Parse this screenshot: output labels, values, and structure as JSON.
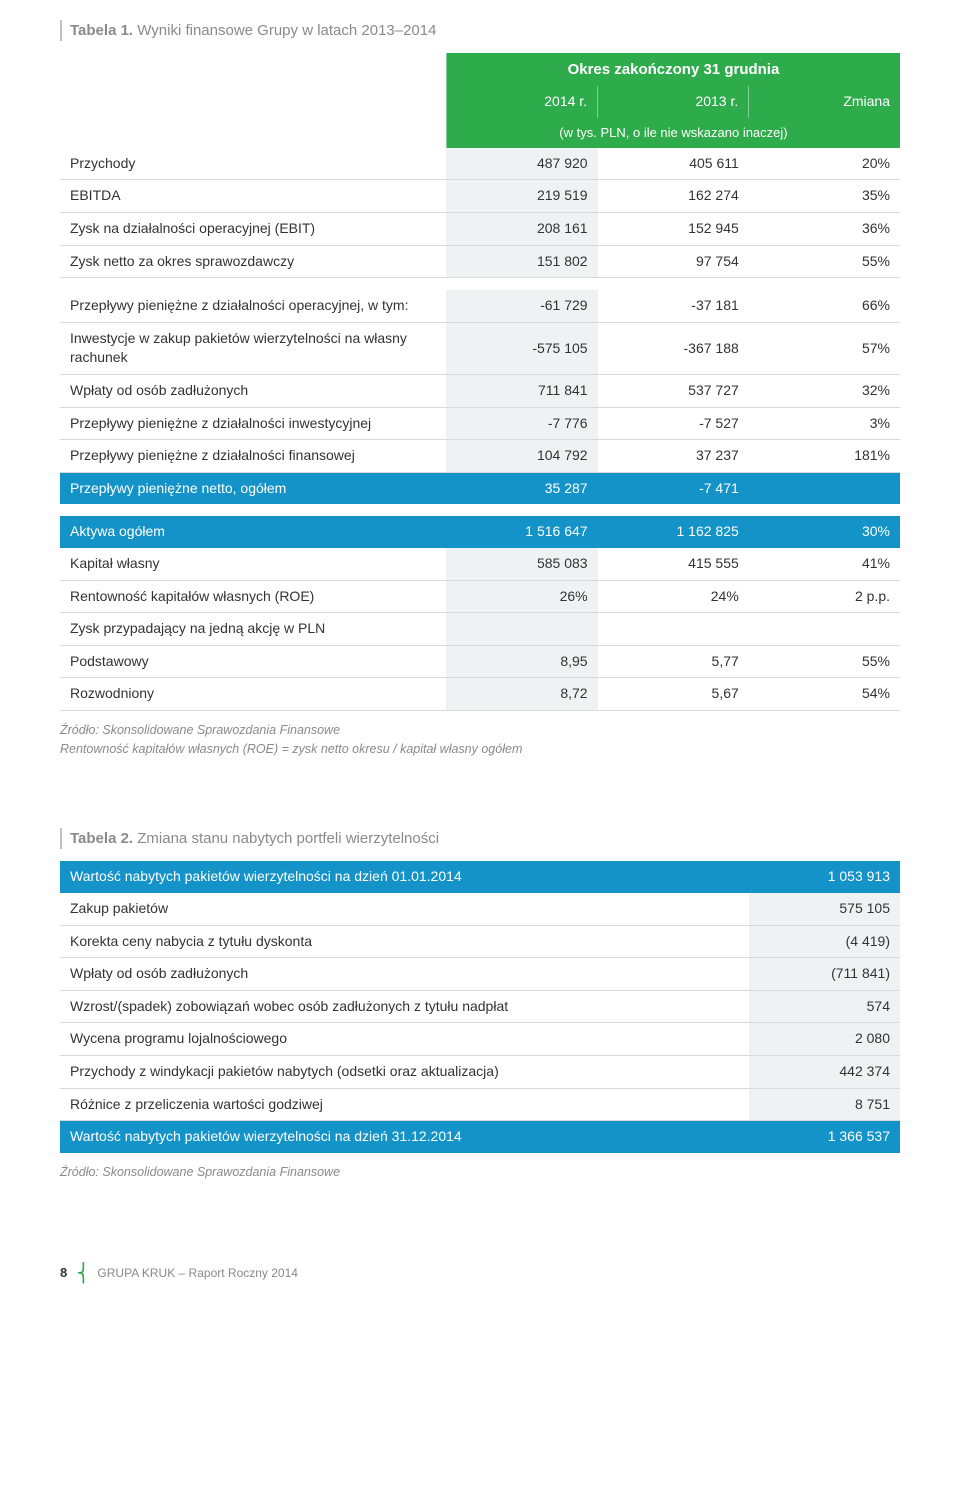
{
  "table1": {
    "title_prefix": "Tabela 1.",
    "title_rest": " Wyniki finansowe Grupy w latach 2013–2014",
    "header_super": "Okres zakończony 31 grudnia",
    "header_cols": [
      "2014 r.",
      "2013 r.",
      "Zmiana"
    ],
    "header_note": "(w tys. PLN, o ile nie wskazano inaczej)",
    "block1": [
      {
        "label": "Przychody",
        "v1": "487 920",
        "v2": "405 611",
        "v3": "20%"
      },
      {
        "label": "EBITDA",
        "v1": "219 519",
        "v2": "162 274",
        "v3": "35%"
      },
      {
        "label": "Zysk na działalności operacyjnej (EBIT)",
        "v1": "208 161",
        "v2": "152 945",
        "v3": "36%"
      },
      {
        "label": "Zysk netto za okres sprawozdawczy",
        "v1": "151 802",
        "v2": "97 754",
        "v3": "55%"
      }
    ],
    "block2": [
      {
        "label": "Przepływy pieniężne z działalności operacyjnej, w tym:",
        "v1": "-61 729",
        "v2": "-37 181",
        "v3": "66%"
      },
      {
        "label": "Inwestycje w zakup pakietów wierzytelności na własny rachunek",
        "v1": "-575 105",
        "v2": "-367 188",
        "v3": "57%"
      },
      {
        "label": "Wpłaty od osób zadłużonych",
        "v1": "711 841",
        "v2": "537 727",
        "v3": "32%"
      },
      {
        "label": "Przepływy pieniężne z działalności inwestycyjnej",
        "v1": "-7 776",
        "v2": "-7 527",
        "v3": "3%"
      },
      {
        "label": "Przepływy pieniężne z działalności finansowej",
        "v1": "104 792",
        "v2": "37 237",
        "v3": "181%"
      }
    ],
    "block2_highlight": {
      "label": "Przepływy pieniężne netto, ogółem",
      "v1": "35 287",
      "v2": "-7 471",
      "v3": ""
    },
    "block3_highlight": {
      "label": "Aktywa ogółem",
      "v1": "1 516 647",
      "v2": "1 162 825",
      "v3": "30%"
    },
    "block3": [
      {
        "label": "Kapitał własny",
        "v1": "585 083",
        "v2": "415 555",
        "v3": "41%"
      },
      {
        "label": "Rentowność kapitałów własnych (ROE)",
        "v1": "26%",
        "v2": "24%",
        "v3": "2 p.p."
      },
      {
        "label": "Zysk przypadający na jedną akcję w PLN",
        "v1": "",
        "v2": "",
        "v3": ""
      },
      {
        "label": "Podstawowy",
        "v1": "8,95",
        "v2": "5,77",
        "v3": "55%"
      },
      {
        "label": "Rozwodniony",
        "v1": "8,72",
        "v2": "5,67",
        "v3": "54%"
      }
    ],
    "source1": "Źródło: Skonsolidowane Sprawozdania Finansowe",
    "source2": "Rentowność kapitałów własnych (ROE) = zysk netto okresu / kapitał własny ogółem"
  },
  "table2": {
    "title_prefix": "Tabela 2.",
    "title_rest": " Zmiana stanu nabytych portfeli wierzytelności",
    "highlight_top": {
      "label": "Wartość nabytych pakietów wierzytelności na dzień 01.01.2014",
      "v": "1 053 913"
    },
    "rows": [
      {
        "label": "Zakup pakietów",
        "v": "575 105"
      },
      {
        "label": "Korekta ceny nabycia z tytułu dyskonta",
        "v": "(4 419)"
      },
      {
        "label": "Wpłaty od osób zadłużonych",
        "v": "(711 841)"
      },
      {
        "label": "Wzrost/(spadek) zobowiązań wobec osób zadłużonych z tytułu nadpłat",
        "v": "574"
      },
      {
        "label": "Wycena programu lojalnościowego",
        "v": "2 080"
      },
      {
        "label": "Przychody z windykacji pakietów nabytych (odsetki oraz aktualizacja)",
        "v": "442 374"
      },
      {
        "label": "Różnice z przeliczenia wartości godziwej",
        "v": "8 751"
      }
    ],
    "highlight_bot": {
      "label": "Wartość nabytych pakietów wierzytelności na dzień 31.12.2014",
      "v": "1 366 537"
    },
    "source": "Źródło: Skonsolidowane Sprawozdania Finansowe"
  },
  "footer": {
    "page": "8",
    "text": "GRUPA KRUK – Raport Roczny 2014"
  },
  "colors": {
    "green": "#2eab4a",
    "blue": "#1493c8",
    "shade": "#eef2f3",
    "border": "#d9d9d9",
    "grey_text": "#8a8a8a"
  }
}
